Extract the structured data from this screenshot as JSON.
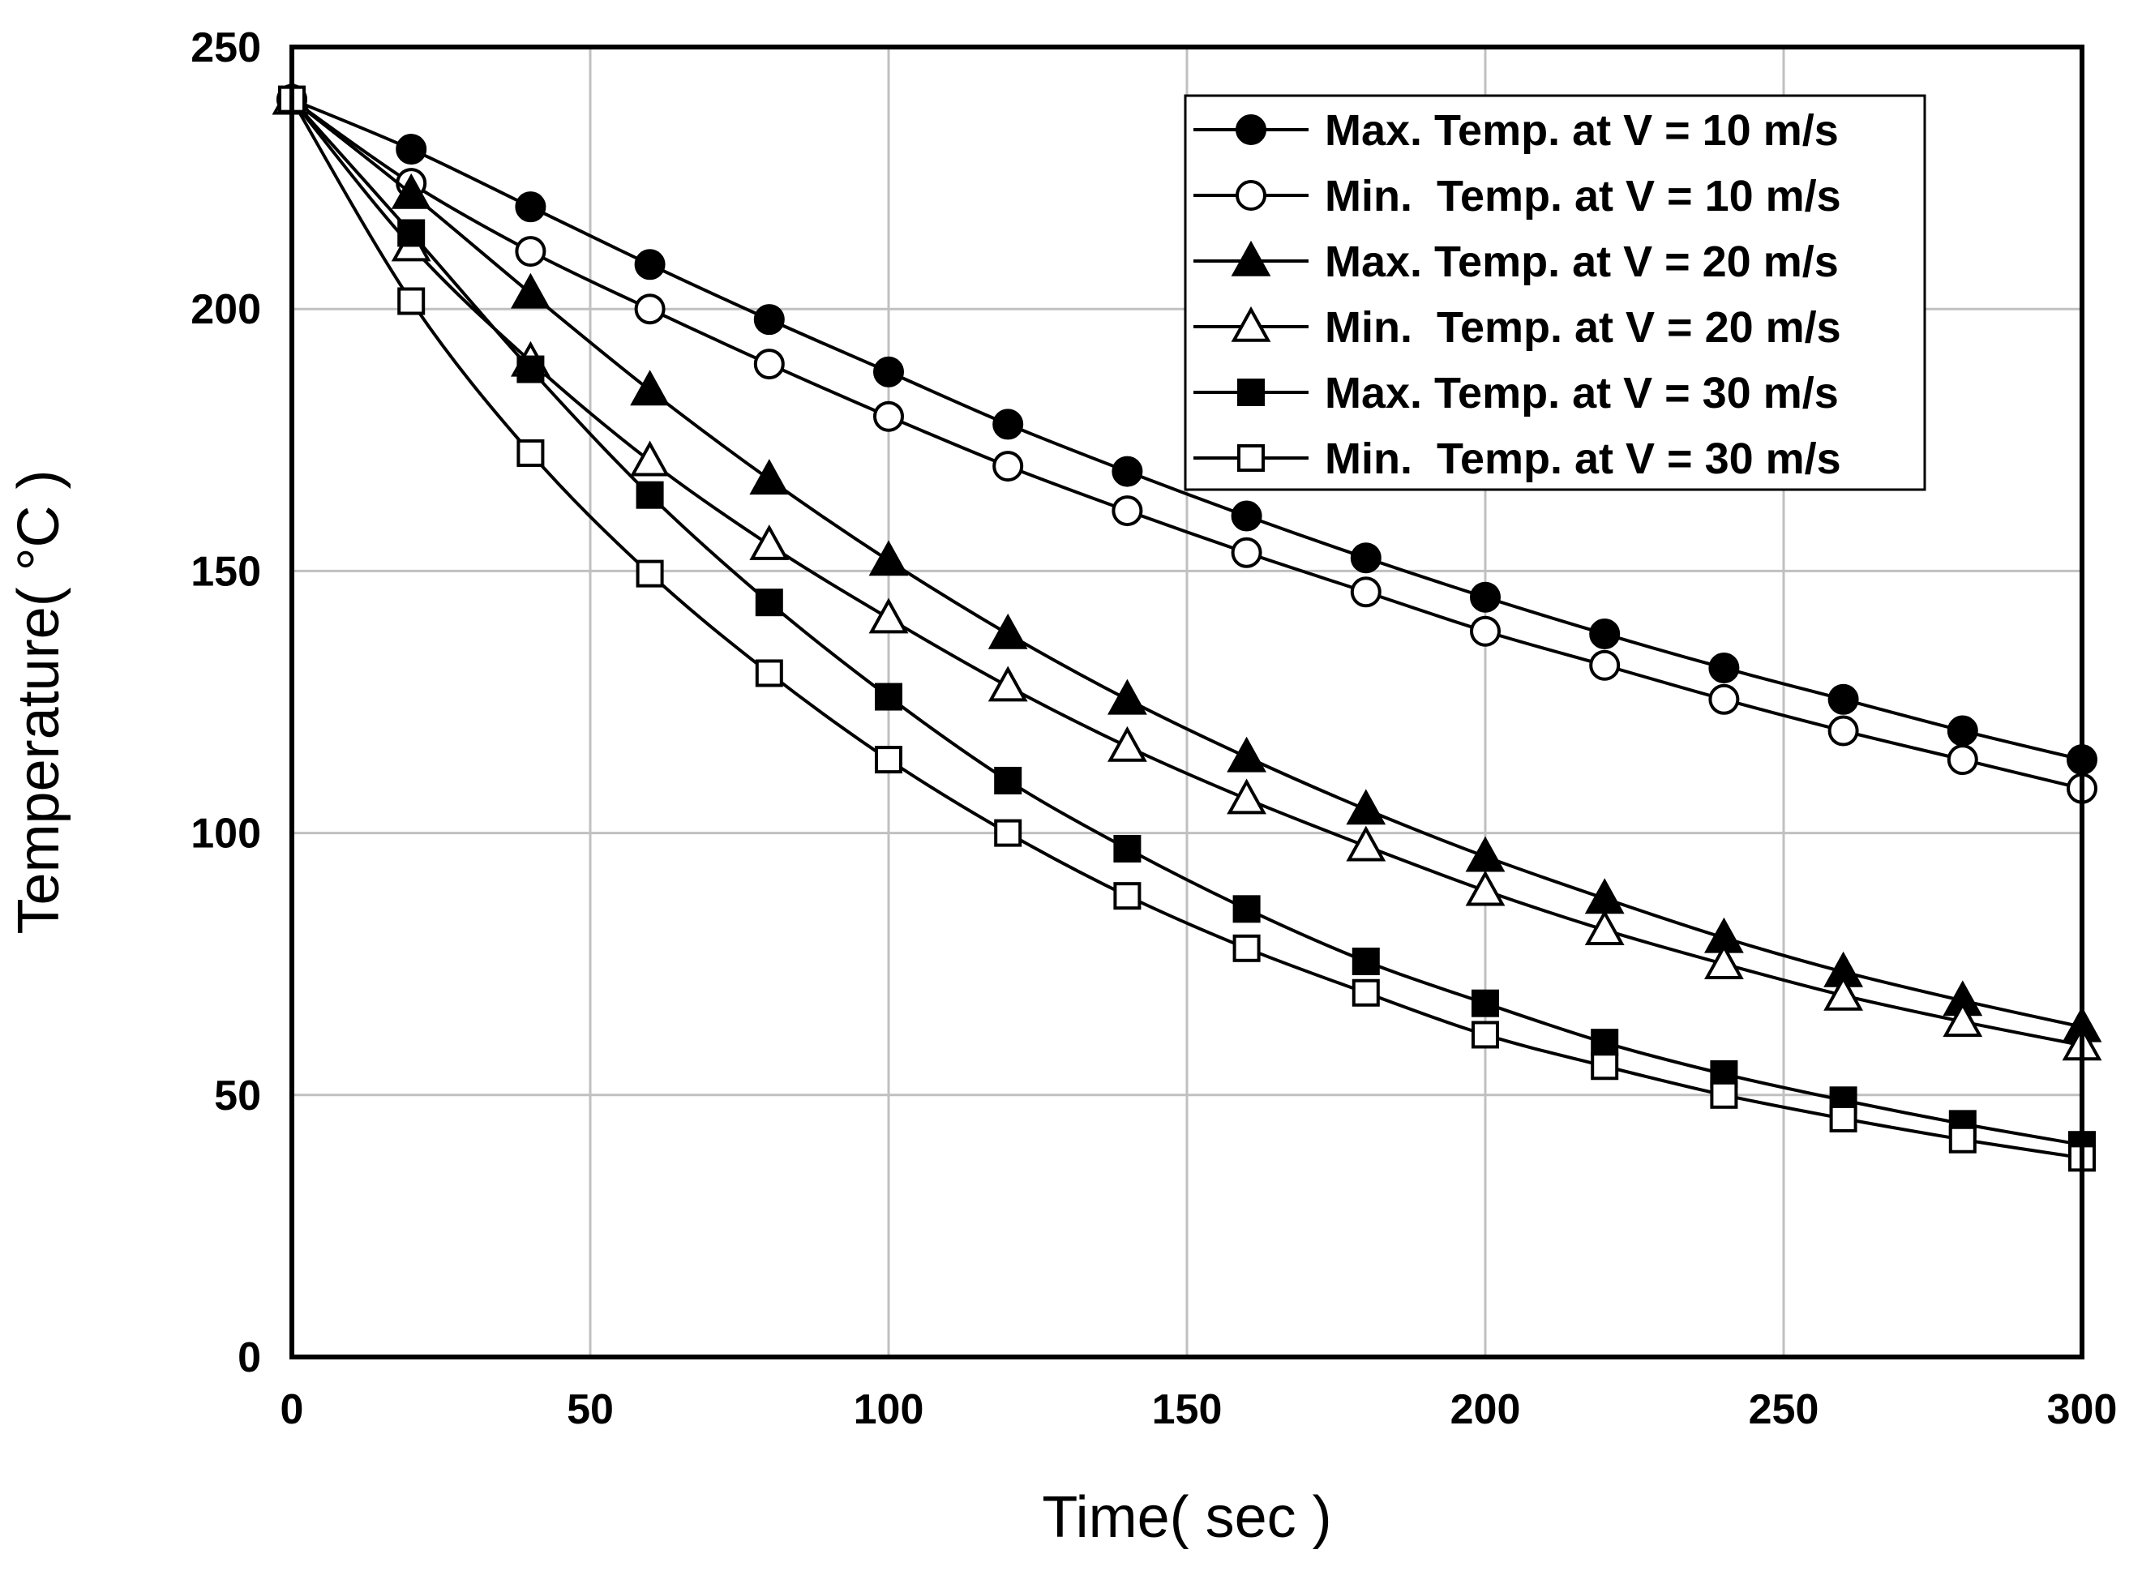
{
  "chart_data": {
    "type": "line",
    "title": "",
    "xlabel": "Time( sec )",
    "ylabel": "Temperature( °C )",
    "xlim": [
      0,
      300
    ],
    "ylim": [
      0,
      250
    ],
    "xticks": [
      0,
      50,
      100,
      150,
      200,
      250,
      300
    ],
    "yticks": [
      0,
      50,
      100,
      150,
      200,
      250
    ],
    "grid": true,
    "legend_position": "top-right",
    "x": [
      0,
      20,
      40,
      60,
      80,
      100,
      120,
      140,
      160,
      180,
      200,
      220,
      240,
      260,
      280,
      300
    ],
    "series": [
      {
        "name": "Max. Temp. at V = 10 m/s",
        "marker": "filled-circle",
        "values": [
          240,
          230.5,
          219.5,
          208.5,
          198,
          188,
          178,
          169,
          160.5,
          152.5,
          145,
          138,
          131.5,
          125.5,
          119.5,
          114
        ]
      },
      {
        "name": "Min.  Temp. at V = 10 m/s",
        "marker": "open-circle",
        "values": [
          240,
          224,
          211,
          200,
          189.5,
          179.5,
          170,
          161.5,
          153.5,
          146,
          138.5,
          132,
          125.5,
          119.5,
          114,
          108.5
        ]
      },
      {
        "name": "Max. Temp. at V = 20 m/s",
        "marker": "filled-triangle",
        "values": [
          240,
          222,
          203,
          184.5,
          167.5,
          152,
          138,
          125.5,
          114.5,
          104.5,
          95.5,
          87.5,
          80,
          73.5,
          68,
          63
        ]
      },
      {
        "name": "Min.  Temp. at V = 20 m/s",
        "marker": "open-triangle",
        "values": [
          240,
          212,
          190,
          171,
          155,
          141,
          128,
          116.5,
          106.5,
          97.5,
          89,
          81.5,
          75,
          69,
          64,
          59.5
        ]
      },
      {
        "name": "Max. Temp. at V = 30 m/s",
        "marker": "filled-square",
        "values": [
          240,
          214.5,
          188.5,
          164.5,
          144,
          126,
          110,
          97,
          85.5,
          75.5,
          67.5,
          60,
          54,
          49,
          44.5,
          40.5
        ]
      },
      {
        "name": "Min.  Temp. at V = 30 m/s",
        "marker": "open-square",
        "values": [
          240,
          201.5,
          172.5,
          149.5,
          130.5,
          114,
          100,
          88,
          78,
          69.5,
          61.5,
          55.5,
          50,
          45.5,
          41.5,
          38
        ]
      }
    ]
  }
}
